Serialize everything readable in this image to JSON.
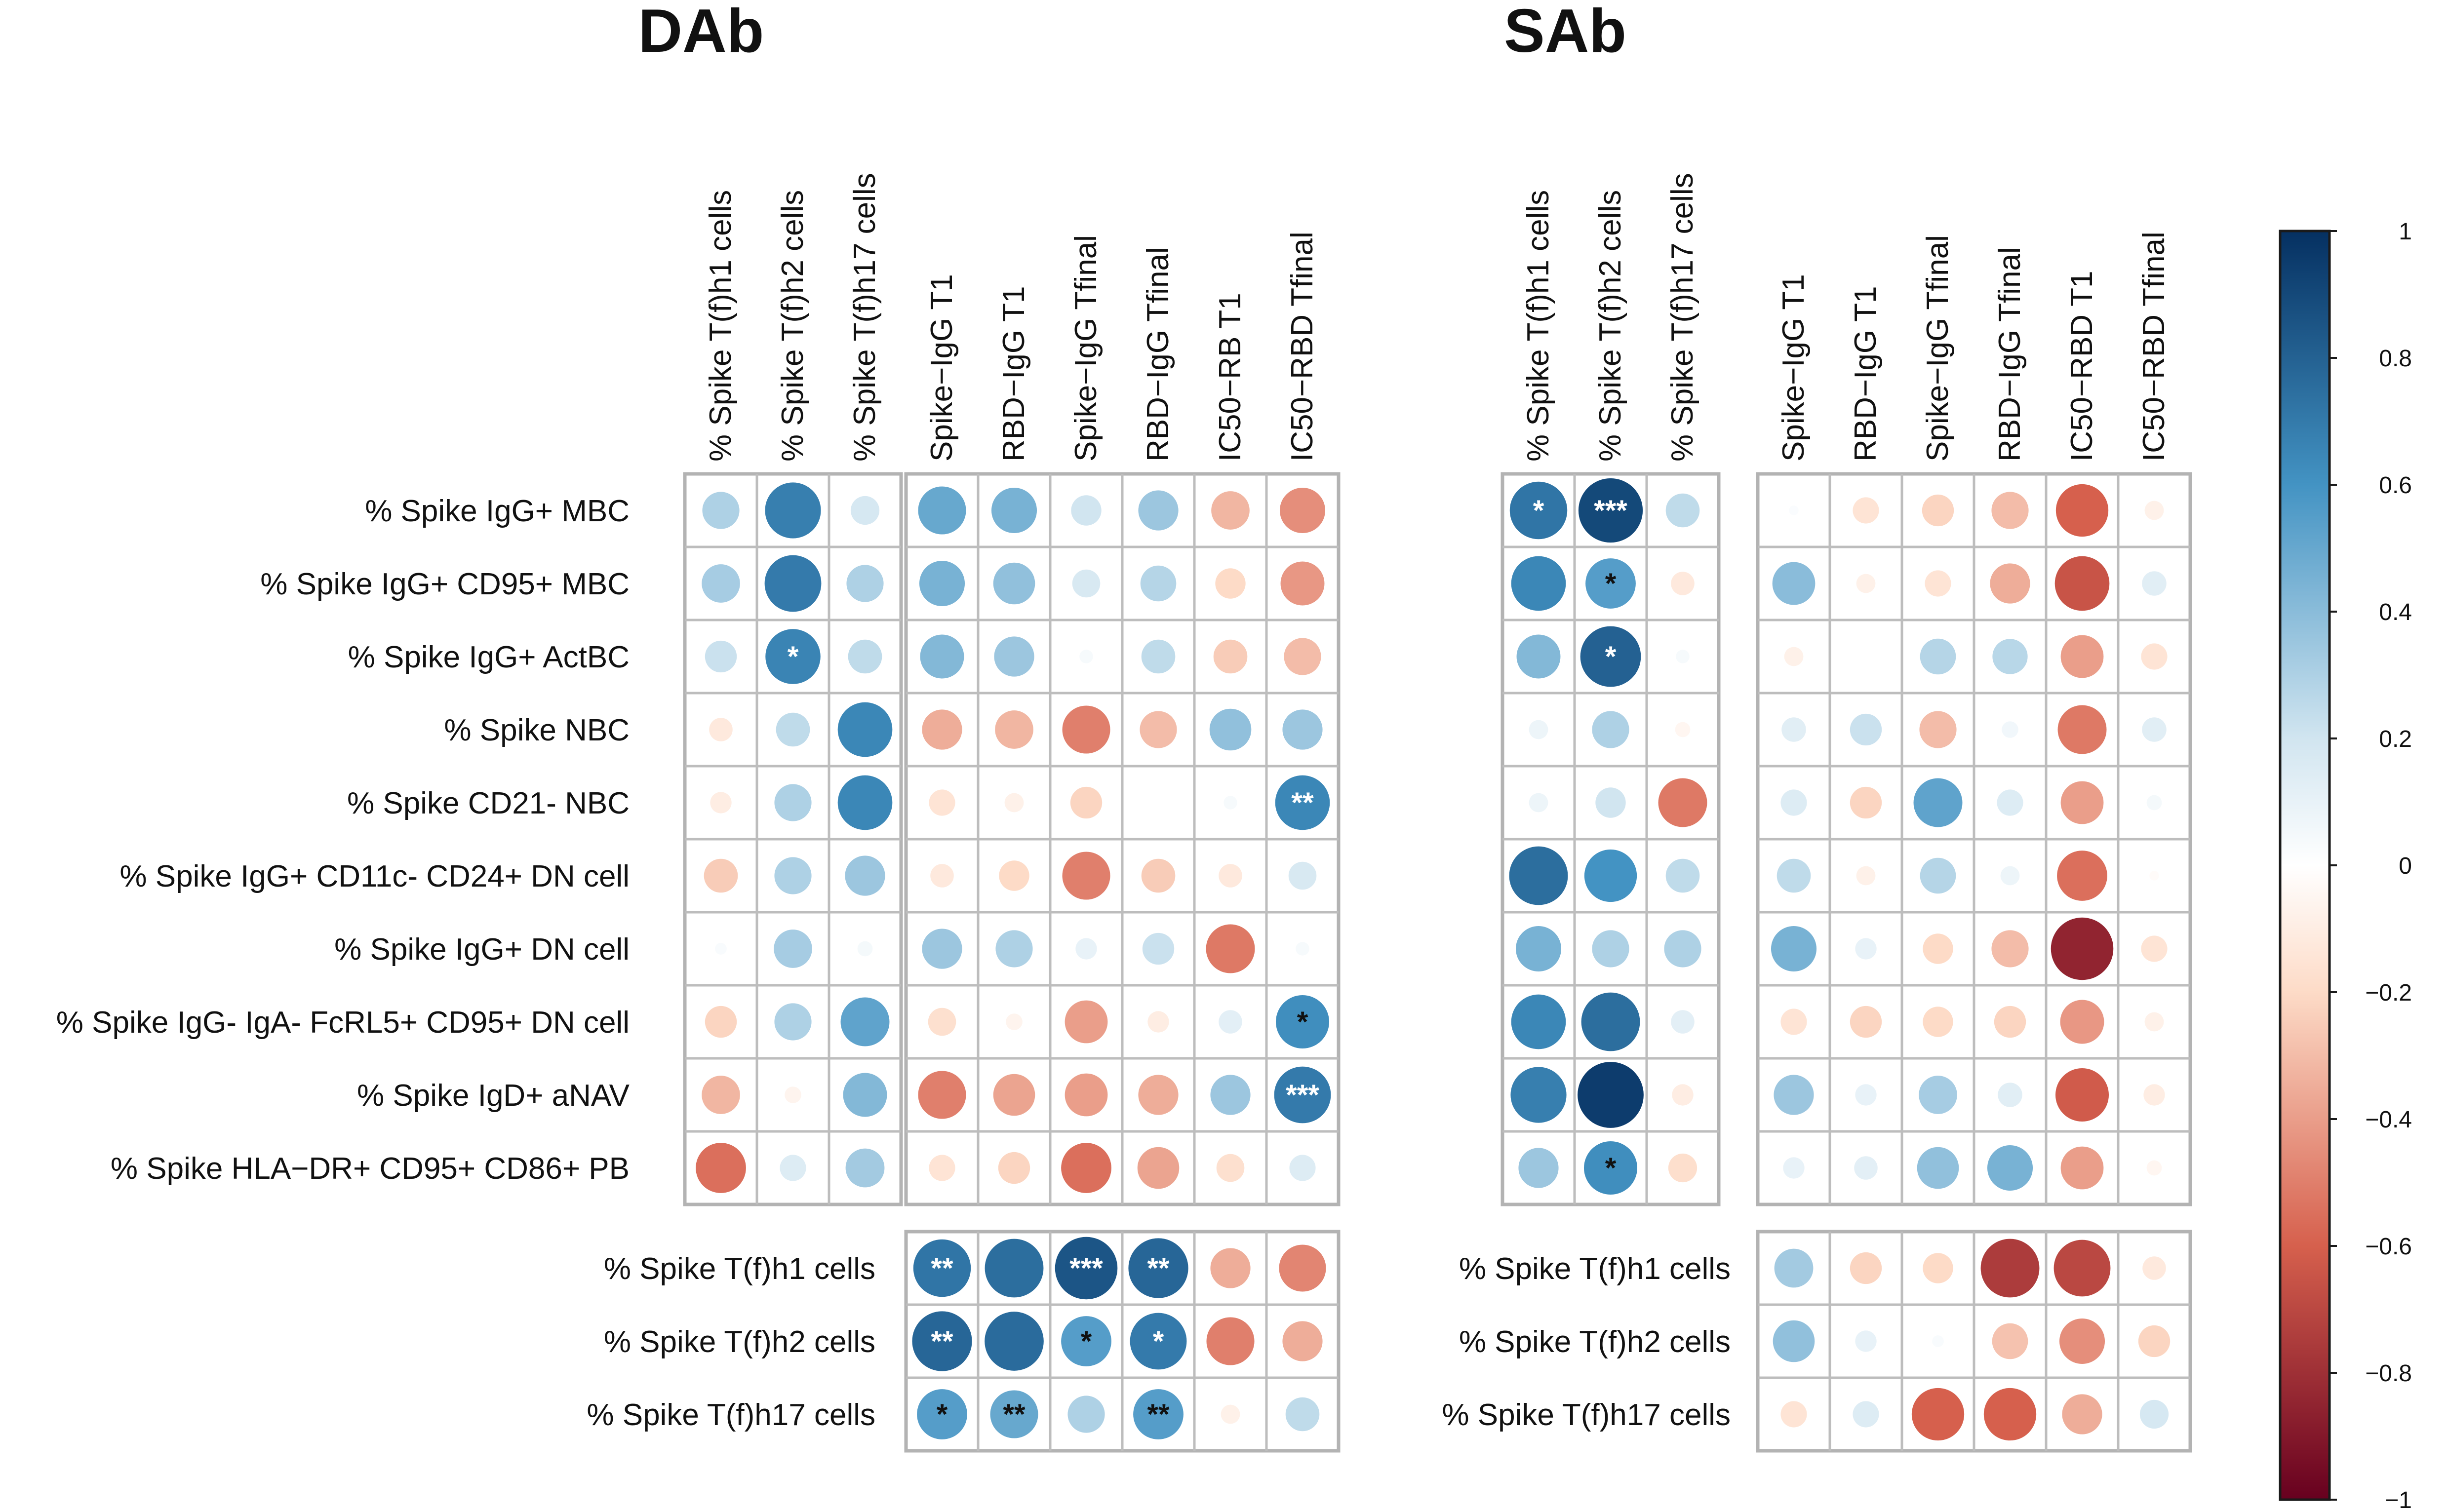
{
  "chart_data": {
    "type": "correlogram",
    "colorbar": {
      "range": [
        -1,
        1
      ],
      "ticks": [
        "1",
        "0.8",
        "0.6",
        "0.4",
        "0.2",
        "0",
        "−0.2",
        "−0.4",
        "−0.6",
        "−0.8",
        "−1"
      ],
      "colors": {
        "neg1": "#67001f",
        "neg06": "#d6604d",
        "neg02": "#fddbc7",
        "zero": "#ffffff",
        "pos02": "#d1e5f0",
        "pos06": "#4393c3",
        "pos1": "#053061"
      }
    },
    "panels": [
      {
        "title": "DAb",
        "row_labels": [
          "% Spike IgG+ MBC",
          "% Spike IgG+ CD95+ MBC",
          "% Spike IgG+ ActBC",
          "% Spike NBC",
          "% Spike CD21- NBC",
          "% Spike IgG+ CD11c- CD24+ DN cell",
          "% Spike IgG+ DN cell",
          "% Spike IgG- IgA- FcRL5+ CD95+ DN cell",
          "% Spike IgD+ aNAV",
          "% Spike HLA−DR+ CD95+ CD86+ PB"
        ],
        "tf_cols": [
          "% Spike T(f)h1 cells",
          "% Spike T(f)h2 cells",
          "% Spike T(f)h17 cells"
        ],
        "ab_cols": [
          "Spike−IgG T1",
          "RBD−IgG T1",
          "Spike−IgG Tfinal",
          "RBD−IgG Tfinal",
          "IC50−RB  T1",
          "IC50−RBD Tfinal"
        ],
        "tf_rows": [
          "% Spike T(f)h1 cells",
          "% Spike T(f)h2 cells",
          "% Spike T(f)h17 cells"
        ],
        "bcell_vs_tf": [
          [
            0.3,
            0.68,
            0.18
          ],
          [
            0.32,
            0.7,
            0.3
          ],
          [
            0.22,
            0.66,
            0.25
          ],
          [
            -0.12,
            0.25,
            0.65
          ],
          [
            -0.1,
            0.3,
            0.65
          ],
          [
            -0.25,
            0.3,
            0.35
          ],
          [
            0.03,
            0.32,
            0.05
          ],
          [
            -0.22,
            0.3,
            0.52
          ],
          [
            -0.32,
            -0.06,
            0.42
          ],
          [
            -0.55,
            0.15,
            0.33
          ]
        ],
        "bcell_vs_tf_sig": [
          [
            "",
            "",
            ""
          ],
          [
            "",
            "",
            ""
          ],
          [
            "",
            "*",
            ""
          ],
          [
            "",
            "",
            ""
          ],
          [
            "",
            "",
            ""
          ],
          [
            "",
            "",
            ""
          ],
          [
            "",
            "",
            ""
          ],
          [
            "",
            "",
            ""
          ],
          [
            "",
            "",
            ""
          ],
          [
            "",
            "",
            ""
          ]
        ],
        "bcell_vs_ab": [
          [
            0.5,
            0.45,
            0.2,
            0.35,
            -0.32,
            -0.45
          ],
          [
            0.45,
            0.38,
            0.17,
            0.28,
            -0.2,
            -0.42
          ],
          [
            0.42,
            0.35,
            0.04,
            0.25,
            -0.25,
            -0.3
          ],
          [
            -0.35,
            -0.32,
            -0.5,
            -0.3,
            0.38,
            0.35
          ],
          [
            -0.15,
            -0.08,
            -0.22,
            0.0,
            0.04,
            0.65
          ],
          [
            -0.12,
            -0.2,
            -0.5,
            -0.25,
            -0.12,
            0.17
          ],
          [
            0.35,
            0.3,
            0.1,
            0.22,
            -0.52,
            0.04
          ],
          [
            -0.17,
            -0.06,
            -0.4,
            -0.1,
            0.12,
            0.62
          ],
          [
            -0.5,
            -0.38,
            -0.4,
            -0.35,
            0.35,
            0.7
          ],
          [
            -0.15,
            -0.22,
            -0.55,
            -0.38,
            -0.17,
            0.15
          ]
        ],
        "bcell_vs_ab_sig": [
          [
            "",
            "",
            "",
            "",
            "",
            ""
          ],
          [
            "",
            "",
            "",
            "",
            "",
            ""
          ],
          [
            "",
            "",
            "",
            "",
            "",
            ""
          ],
          [
            "",
            "",
            "",
            "",
            "",
            ""
          ],
          [
            "",
            "",
            "",
            "",
            "",
            "**"
          ],
          [
            "",
            "",
            "",
            "",
            "",
            ""
          ],
          [
            "",
            "",
            "",
            "",
            "",
            ""
          ],
          [
            "",
            "",
            "",
            "",
            "",
            "*"
          ],
          [
            "",
            "",
            "",
            "",
            "",
            "***"
          ],
          [
            "",
            "",
            "",
            "",
            "",
            ""
          ]
        ],
        "tf_vs_ab": [
          [
            0.72,
            0.75,
            0.85,
            0.78,
            -0.35,
            -0.48
          ],
          [
            0.78,
            0.76,
            0.55,
            0.7,
            -0.5,
            -0.35
          ],
          [
            0.55,
            0.5,
            0.3,
            0.55,
            -0.08,
            0.25
          ]
        ],
        "tf_vs_ab_sig": [
          [
            "**",
            "",
            "***",
            "**",
            "",
            ""
          ],
          [
            "**",
            "",
            "*",
            "*",
            "",
            ""
          ],
          [
            "*",
            "**",
            "",
            "**",
            "",
            ""
          ]
        ]
      },
      {
        "title": "SAb",
        "row_labels": [],
        "tf_cols": [
          "% Spike T(f)h1 cells",
          "% Spike T(f)h2 cells",
          "% Spike T(f)h17 cells"
        ],
        "ab_cols": [
          "Spike−IgG T1",
          "RBD−IgG T1",
          "Spike−IgG Tfinal",
          "RBD−IgG Tfinal",
          "IC50−RBD T1",
          "IC50−RBD Tfinal"
        ],
        "tf_rows": [
          "% Spike T(f)h1 cells",
          "% Spike T(f)h2 cells",
          "% Spike T(f)h17 cells"
        ],
        "bcell_vs_tf": [
          [
            0.72,
            0.9,
            0.25
          ],
          [
            0.65,
            0.55,
            -0.12
          ],
          [
            0.42,
            0.8,
            0.04
          ],
          [
            0.08,
            0.3,
            -0.05
          ],
          [
            0.08,
            0.2,
            -0.52
          ],
          [
            0.75,
            0.6,
            0.25
          ],
          [
            0.45,
            0.3,
            0.3
          ],
          [
            0.65,
            0.75,
            0.12
          ],
          [
            0.68,
            0.95,
            -0.1
          ],
          [
            0.35,
            0.62,
            -0.18
          ]
        ],
        "bcell_vs_tf_sig": [
          [
            "*",
            "***",
            ""
          ],
          [
            "",
            "*",
            ""
          ],
          [
            "",
            "*",
            ""
          ],
          [
            "",
            "",
            ""
          ],
          [
            "",
            "",
            ""
          ],
          [
            "",
            "",
            ""
          ],
          [
            "",
            "",
            ""
          ],
          [
            "",
            "",
            ""
          ],
          [
            "",
            "",
            ""
          ],
          [
            "",
            "*",
            ""
          ]
        ],
        "bcell_vs_ab": [
          [
            0.02,
            -0.15,
            -0.22,
            -0.3,
            -0.6,
            -0.08
          ],
          [
            0.4,
            -0.08,
            -0.15,
            -0.35,
            -0.65,
            0.13
          ],
          [
            -0.08,
            0.0,
            0.28,
            0.27,
            -0.4,
            -0.15
          ],
          [
            0.13,
            0.22,
            -0.3,
            0.06,
            -0.52,
            0.13
          ],
          [
            0.15,
            -0.22,
            0.52,
            0.15,
            -0.4,
            0.05
          ],
          [
            0.25,
            -0.08,
            0.28,
            0.08,
            -0.55,
            -0.02
          ],
          [
            0.45,
            0.1,
            -0.2,
            -0.3,
            -0.85,
            -0.15
          ],
          [
            -0.15,
            -0.22,
            -0.2,
            -0.22,
            -0.42,
            -0.08
          ],
          [
            0.35,
            0.1,
            0.32,
            0.13,
            -0.62,
            -0.1
          ],
          [
            0.1,
            0.12,
            0.38,
            0.45,
            -0.4,
            -0.05
          ]
        ],
        "bcell_vs_ab_sig": [
          [
            "",
            "",
            "",
            "",
            "",
            ""
          ],
          [
            "",
            "",
            "",
            "",
            "",
            ""
          ],
          [
            "",
            "",
            "",
            "",
            "",
            ""
          ],
          [
            "",
            "",
            "",
            "",
            "",
            ""
          ],
          [
            "",
            "",
            "",
            "",
            "",
            ""
          ],
          [
            "",
            "",
            "",
            "",
            "",
            ""
          ],
          [
            "",
            "",
            "",
            "",
            "",
            ""
          ],
          [
            "",
            "",
            "",
            "",
            "",
            ""
          ],
          [
            "",
            "",
            "",
            "",
            "",
            ""
          ],
          [
            "",
            "",
            "",
            "",
            "",
            ""
          ]
        ],
        "tf_vs_ab": [
          [
            0.33,
            -0.22,
            -0.2,
            -0.75,
            -0.7,
            -0.12
          ],
          [
            0.38,
            0.1,
            0.03,
            -0.28,
            -0.45,
            -0.22
          ],
          [
            -0.15,
            0.15,
            -0.6,
            -0.6,
            -0.35,
            0.18
          ]
        ],
        "tf_vs_ab_sig": [
          [
            "",
            "",
            "",
            "",
            "",
            ""
          ],
          [
            "",
            "",
            "",
            "",
            "",
            ""
          ],
          [
            "",
            "",
            "",
            "",
            "",
            ""
          ]
        ]
      }
    ]
  }
}
